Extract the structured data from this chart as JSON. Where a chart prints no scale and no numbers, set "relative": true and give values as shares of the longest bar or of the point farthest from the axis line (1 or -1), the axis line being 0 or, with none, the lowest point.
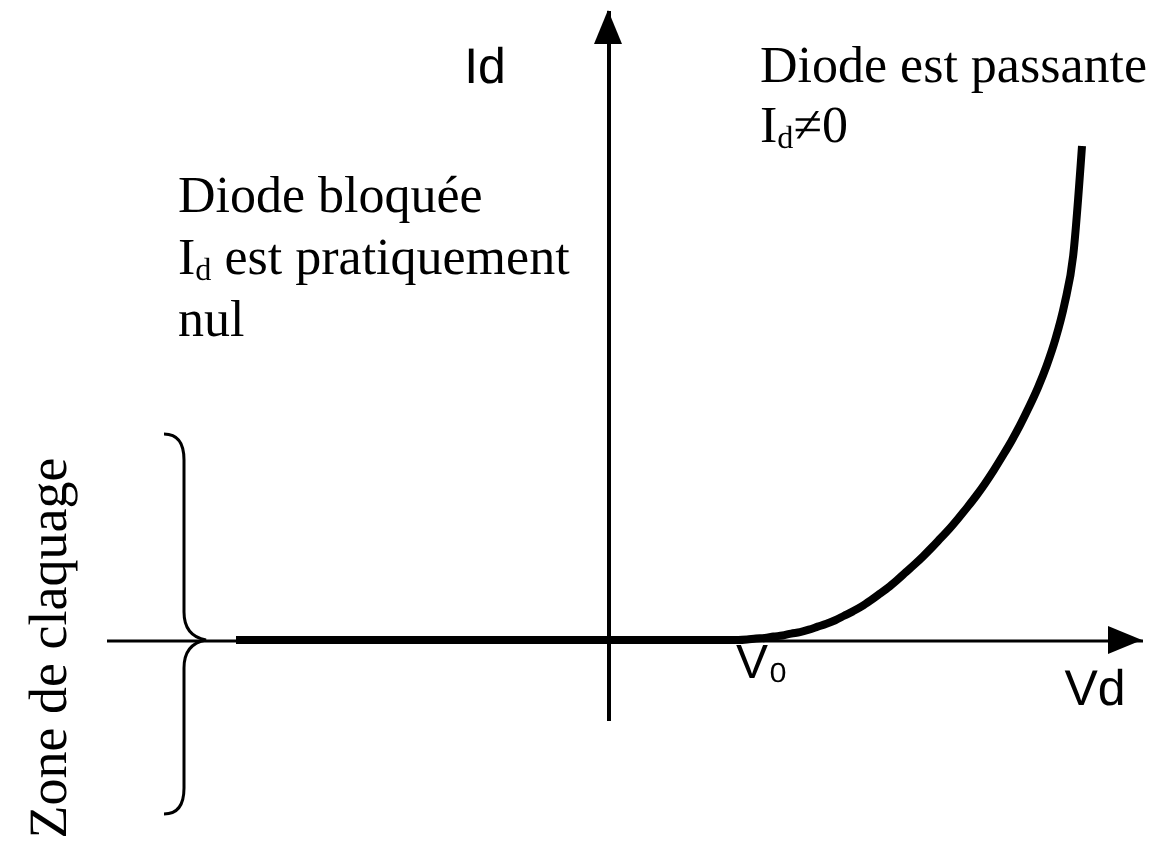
{
  "chart_data": {
    "type": "line",
    "relative": true,
    "xlabel": "Vd",
    "ylabel": "Id",
    "line_style": "solid",
    "categories": [
      null,
      null,
      null,
      null,
      null,
      null,
      null,
      null,
      null,
      null,
      null,
      null,
      null,
      null,
      null,
      null,
      null,
      null,
      null,
      null,
      null,
      null,
      null,
      null,
      null,
      null,
      null,
      null,
      null,
      null,
      null,
      null,
      null,
      null,
      null,
      null,
      null,
      null,
      null,
      null,
      null,
      null,
      null,
      null,
      null,
      null,
      null,
      null,
      null,
      null,
      null,
      null,
      null,
      null,
      null,
      null,
      null,
      null,
      null,
      null,
      null,
      null,
      null,
      null,
      null,
      null,
      null,
      null,
      null,
      null,
      null,
      null,
      null,
      null,
      null,
      null,
      null,
      null,
      null,
      null,
      null,
      null,
      null,
      null,
      null,
      null,
      null,
      null,
      null,
      null,
      null,
      null,
      null,
      null,
      null,
      null,
      null
    ],
    "series": [
      {
        "color": "#000000",
        "values": [
          0,
          0,
          0,
          0,
          0,
          0,
          0,
          0,
          0,
          0,
          0,
          0,
          0,
          0,
          0,
          0,
          0,
          0,
          0,
          0,
          0,
          0,
          0,
          0,
          0,
          0,
          0,
          0,
          0,
          0,
          0,
          0,
          0,
          0,
          0,
          0,
          0,
          0,
          0,
          0,
          0,
          0,
          0,
          0,
          0,
          0,
          0,
          0,
          0,
          0,
          0,
          0,
          0,
          0,
          0,
          0,
          0,
          0,
          0.001,
          0.003,
          0.004,
          0.007,
          0.009,
          0.013,
          0.016,
          0.021,
          0.027,
          0.033,
          0.04,
          0.049,
          0.058,
          0.068,
          0.08,
          0.093,
          0.106,
          0.121,
          0.137,
          0.153,
          0.17,
          0.188,
          0.207,
          0.226,
          0.247,
          0.269,
          0.292,
          0.317,
          0.344,
          0.373,
          0.403,
          0.436,
          0.472,
          0.511,
          0.556,
          0.61,
          0.679,
          0.778,
          1
        ]
      }
    ],
    "annotations": [
      "Diode bloquée\nI$_{d}$ est pratiquement\nnul",
      "Diode est passante\nI$_{d}$≠0",
      "Zone de claquage",
      "V₀"
    ]
  }
}
